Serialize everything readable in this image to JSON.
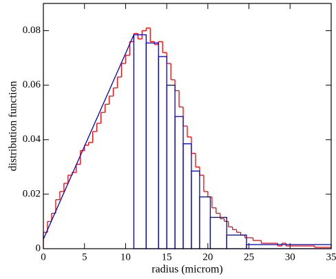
{
  "chart_data": {
    "type": "histogram",
    "x_label": "radius (microm)",
    "y_label": "distribution function",
    "xlim": [
      0,
      35
    ],
    "xticks": [
      0,
      5,
      10,
      15,
      20,
      25,
      30,
      35
    ],
    "ylim": [
      0,
      0.09
    ],
    "yticks": [
      0,
      0.02,
      0.04,
      0.06,
      0.08
    ],
    "series": [
      {
        "color": "#ff0000",
        "style": "step",
        "bins": [
          0,
          0.5,
          1,
          1.5,
          2,
          2.5,
          3,
          3.5,
          4,
          4.5,
          5,
          5.5,
          6,
          6.5,
          7,
          7.5,
          8,
          8.5,
          9,
          9.5,
          10,
          10.5,
          11,
          11.5,
          12,
          12.5,
          13,
          13.5,
          14,
          14.5,
          15,
          15.5,
          16,
          16.5,
          17,
          17.5,
          18,
          18.5,
          19,
          19.5,
          20,
          20.5,
          21,
          21.5,
          22,
          22.5,
          23,
          23.5,
          24,
          24.5,
          25,
          25.5,
          26,
          26.5,
          27,
          27.5,
          28,
          28.5,
          29,
          29.5,
          30,
          30.5,
          31,
          31.5,
          32,
          32.5,
          33,
          33.5,
          34,
          34.5,
          35
        ],
        "values": [
          0.006,
          0.01,
          0.013,
          0.018,
          0.021,
          0.024,
          0.027,
          0.028,
          0.031,
          0.036,
          0.038,
          0.039,
          0.043,
          0.046,
          0.05,
          0.053,
          0.056,
          0.059,
          0.063,
          0.068,
          0.071,
          0.076,
          0.079,
          0.077,
          0.08,
          0.081,
          0.076,
          0.075,
          0.076,
          0.072,
          0.068,
          0.062,
          0.058,
          0.052,
          0.045,
          0.041,
          0.035,
          0.03,
          0.027,
          0.021,
          0.019,
          0.015,
          0.013,
          0.011,
          0.01,
          0.008,
          0.007,
          0.006,
          0.005,
          0.004,
          0.004,
          0.003,
          0.003,
          0.002,
          0.002,
          0.002,
          0.002,
          0.001,
          0.002,
          0.001,
          0.001,
          0.001,
          0.001,
          0.001,
          0.001,
          0.001,
          0.0005,
          0.0005,
          0.0005,
          0.0005
        ]
      },
      {
        "color": "#0000cc",
        "style": "bars",
        "bins": [
          11,
          12.5,
          14,
          15,
          16,
          17,
          18,
          19,
          20.3,
          22.3,
          24.7,
          35
        ],
        "values": [
          0.0785,
          0.0755,
          0.0705,
          0.06,
          0.0485,
          0.0385,
          0.0285,
          0.019,
          0.0115,
          0.005,
          0.0015
        ]
      }
    ],
    "lines": [
      {
        "color": "#0000cc",
        "x": [
          0,
          11
        ],
        "values": [
          0.0035,
          0.0785
        ]
      }
    ]
  }
}
